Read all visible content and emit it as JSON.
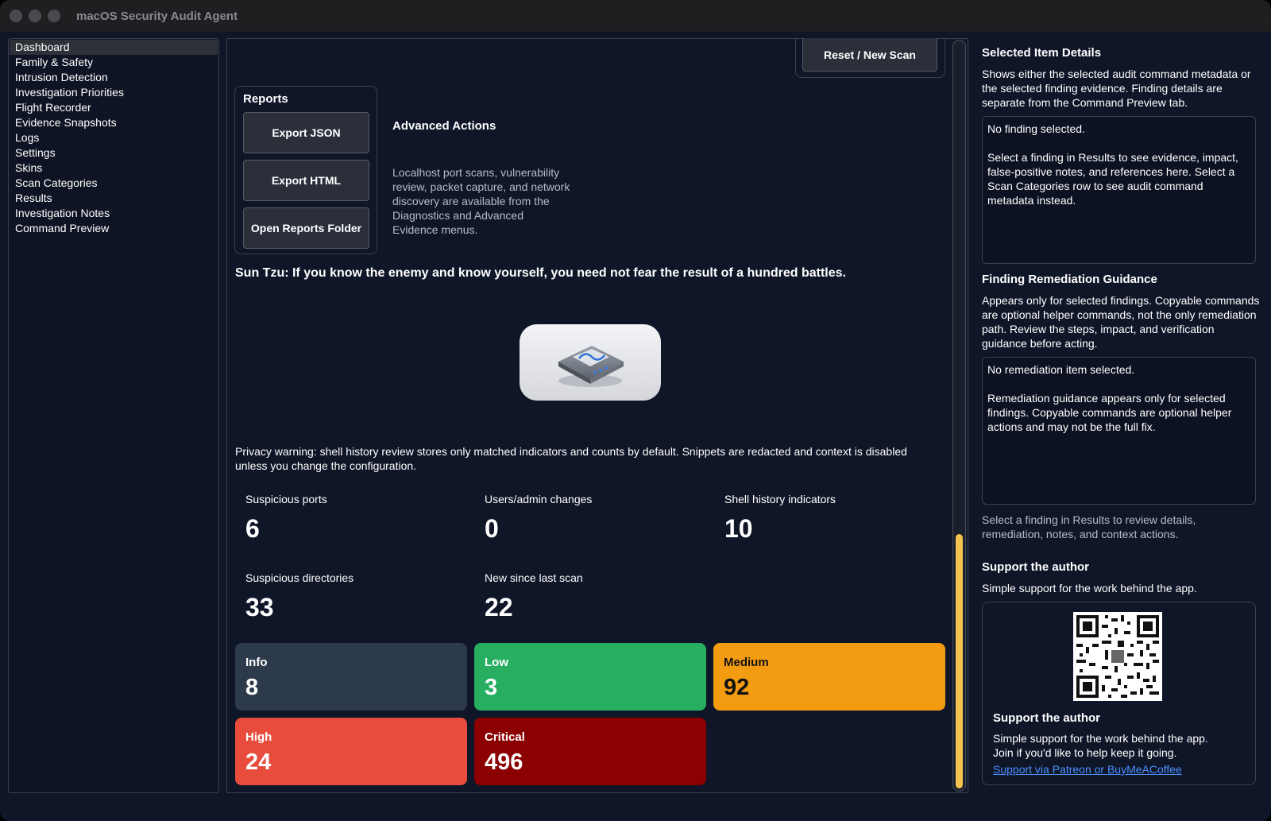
{
  "window": {
    "title": "macOS Security Audit Agent"
  },
  "sidebar": {
    "items": [
      {
        "label": "Dashboard",
        "selected": true
      },
      {
        "label": "Family & Safety"
      },
      {
        "label": "Intrusion Detection"
      },
      {
        "label": "Investigation Priorities"
      },
      {
        "label": "Flight Recorder"
      },
      {
        "label": "Evidence Snapshots"
      },
      {
        "label": "Logs"
      },
      {
        "label": "Settings"
      },
      {
        "label": "Skins"
      },
      {
        "label": "Scan Categories"
      },
      {
        "label": "Results"
      },
      {
        "label": "Investigation Notes"
      },
      {
        "label": "Command Preview"
      }
    ]
  },
  "toolbar": {
    "reset_label": "Reset / New Scan"
  },
  "reports": {
    "title": "Reports",
    "export_json": "Export JSON",
    "export_html": "Export HTML",
    "open_folder": "Open Reports Folder"
  },
  "advanced": {
    "title": "Advanced Actions",
    "description": "Localhost port scans, vulnerability review, packet capture, and network discovery are available from the Diagnostics and Advanced Evidence menus."
  },
  "quote": "Sun Tzu: If you know the enemy and know yourself, you need not fear the result of a hundred battles.",
  "privacy_warning": "Privacy warning: shell history review stores only matched indicators and counts by default. Snippets are redacted and context is disabled unless you change the configuration.",
  "stats": {
    "suspicious_ports": {
      "label": "Suspicious ports",
      "value": "6"
    },
    "users_admin": {
      "label": "Users/admin changes",
      "value": "0"
    },
    "shell_history": {
      "label": "Shell history indicators",
      "value": "10"
    },
    "suspicious_dirs": {
      "label": "Suspicious directories",
      "value": "33"
    },
    "new_since": {
      "label": "New since last scan",
      "value": "22"
    }
  },
  "severity": {
    "info": {
      "label": "Info",
      "value": "8",
      "color": "#2d3a4c"
    },
    "low": {
      "label": "Low",
      "value": "3",
      "color": "#27ae60"
    },
    "medium": {
      "label": "Medium",
      "value": "92",
      "color": "#f39c12"
    },
    "high": {
      "label": "High",
      "value": "24",
      "color": "#e74c3c"
    },
    "critical": {
      "label": "Critical",
      "value": "496",
      "color": "#8b0000"
    }
  },
  "details": {
    "title": "Selected Item Details",
    "description": "Shows either the selected audit command metadata or the selected finding evidence. Finding details are separate from the Command Preview tab.",
    "box_line1": "No finding selected.",
    "box_line2": "Select a finding in Results to see evidence, impact, false-positive notes, and references here. Select a Scan Categories row to see audit command metadata instead."
  },
  "remediation": {
    "title": "Finding Remediation Guidance",
    "description": "Appears only for selected findings. Copyable commands are optional helper commands, not the only remediation path. Review the steps, impact, and verification guidance before acting.",
    "box_line1": "No remediation item selected.",
    "box_line2": "Remediation guidance appears only for selected findings. Copyable commands are optional helper actions and may not be the full fix.",
    "hint": "Select a finding in Results to review details, remediation, notes, and context actions."
  },
  "support": {
    "title": "Support the author",
    "subtitle": "Simple support for the work behind the app.",
    "card_title": "Support the author",
    "card_text1": "Simple support for the work behind the app.",
    "card_text2": "Join if you'd like to help keep it going.",
    "link": "Support via Patreon or BuyMeACoffee"
  }
}
